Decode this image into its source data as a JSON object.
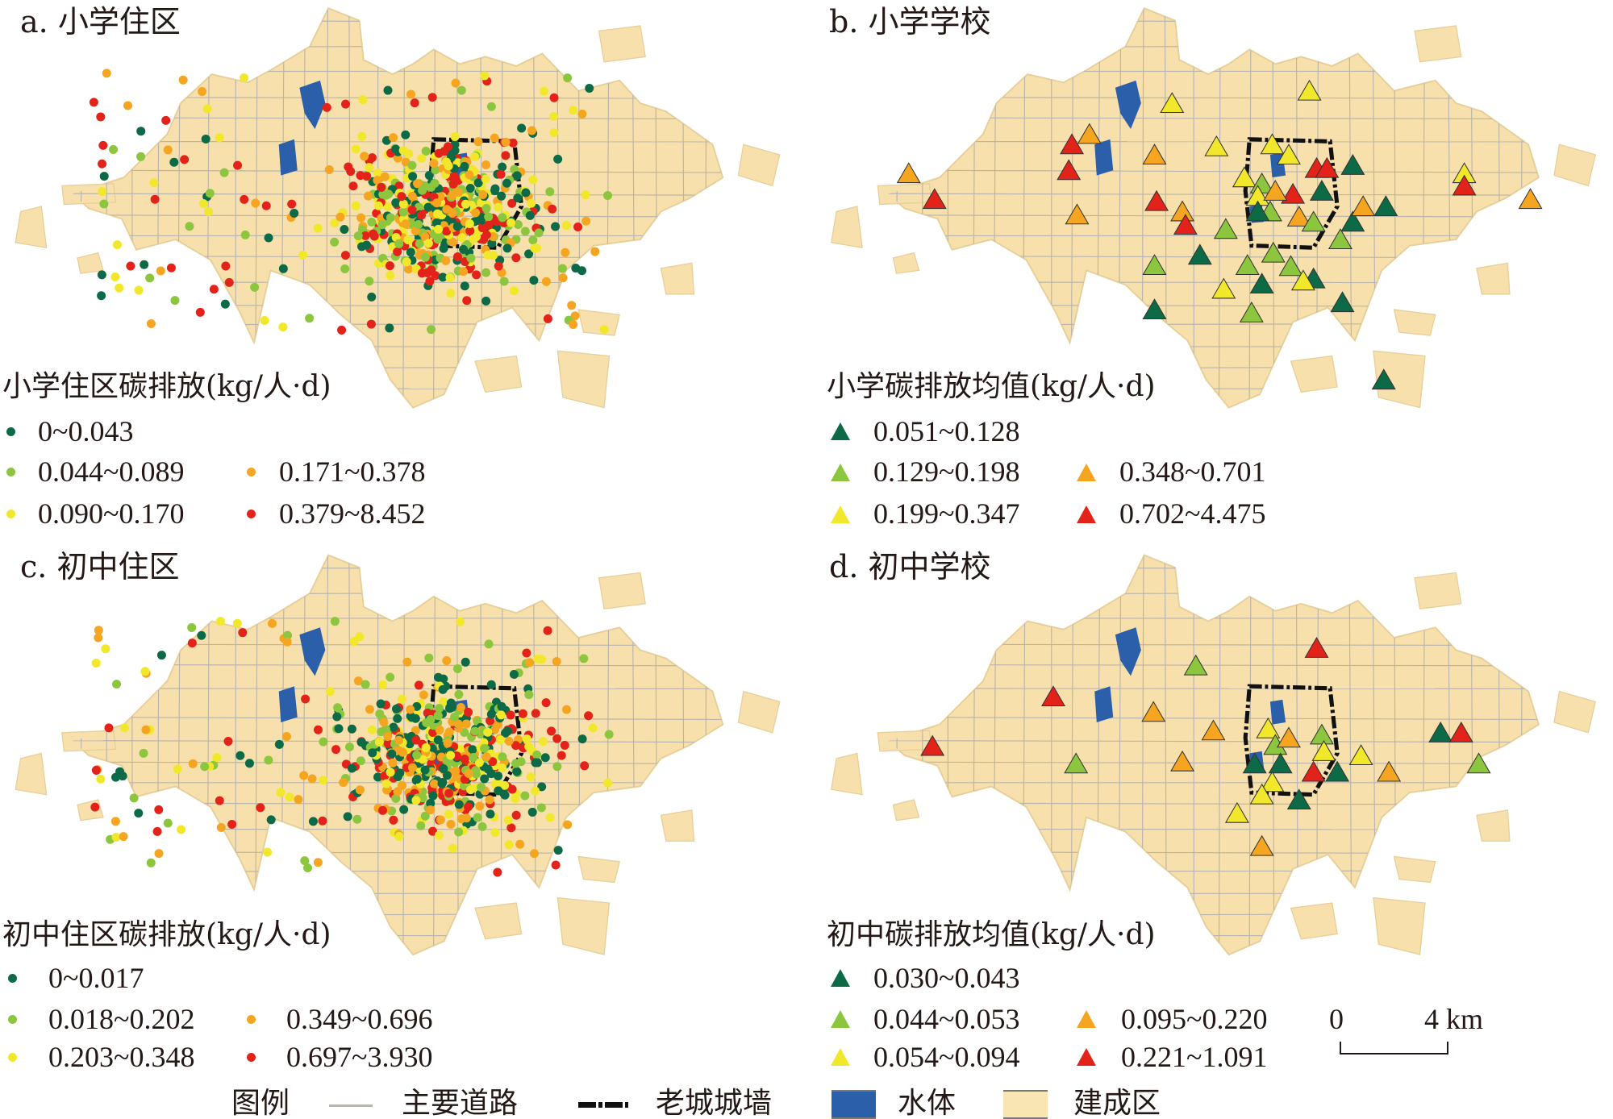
{
  "colors": {
    "built_area": "#f7e0ab",
    "water": "#2c5faa",
    "road": "#b8b4ae",
    "wall": "#111111",
    "class_1": "#0c6b46",
    "class_2": "#8cc63e",
    "class_3": "#f1e82c",
    "class_4": "#f5a51f",
    "class_5": "#e3231a"
  },
  "panels": {
    "a": {
      "label": "a. 小学住区",
      "legend_title": "小学住区碳排放(kg/人·d)",
      "marker": "circle",
      "classes": [
        "0~0.043",
        "0.044~0.089",
        "0.090~0.170",
        "0.171~0.378",
        "0.379~8.452"
      ]
    },
    "b": {
      "label": "b. 小学学校",
      "legend_title": "小学碳排放均值(kg/人·d)",
      "marker": "triangle",
      "classes": [
        "0.051~0.128",
        "0.129~0.198",
        "0.199~0.347",
        "0.348~0.701",
        "0.702~4.475"
      ]
    },
    "c": {
      "label": "c. 初中住区",
      "legend_title": "初中住区碳排放(kg/人·d)",
      "marker": "circle",
      "classes": [
        "0~0.017",
        "0.018~0.202",
        "0.203~0.348",
        "0.349~0.696",
        "0.697~3.930"
      ]
    },
    "d": {
      "label": "d. 初中学校",
      "legend_title": "初中碳排放均值(kg/人·d)",
      "marker": "triangle",
      "classes": [
        "0.030~0.043",
        "0.044~0.053",
        "0.054~0.094",
        "0.095~0.220",
        "0.221~1.091"
      ]
    }
  },
  "scale_bar": {
    "zero": "0",
    "end": "4 km"
  },
  "legend": {
    "title": "图例",
    "road": "主要道路",
    "wall": "老城城墙",
    "water": "水体",
    "built": "建成区"
  }
}
